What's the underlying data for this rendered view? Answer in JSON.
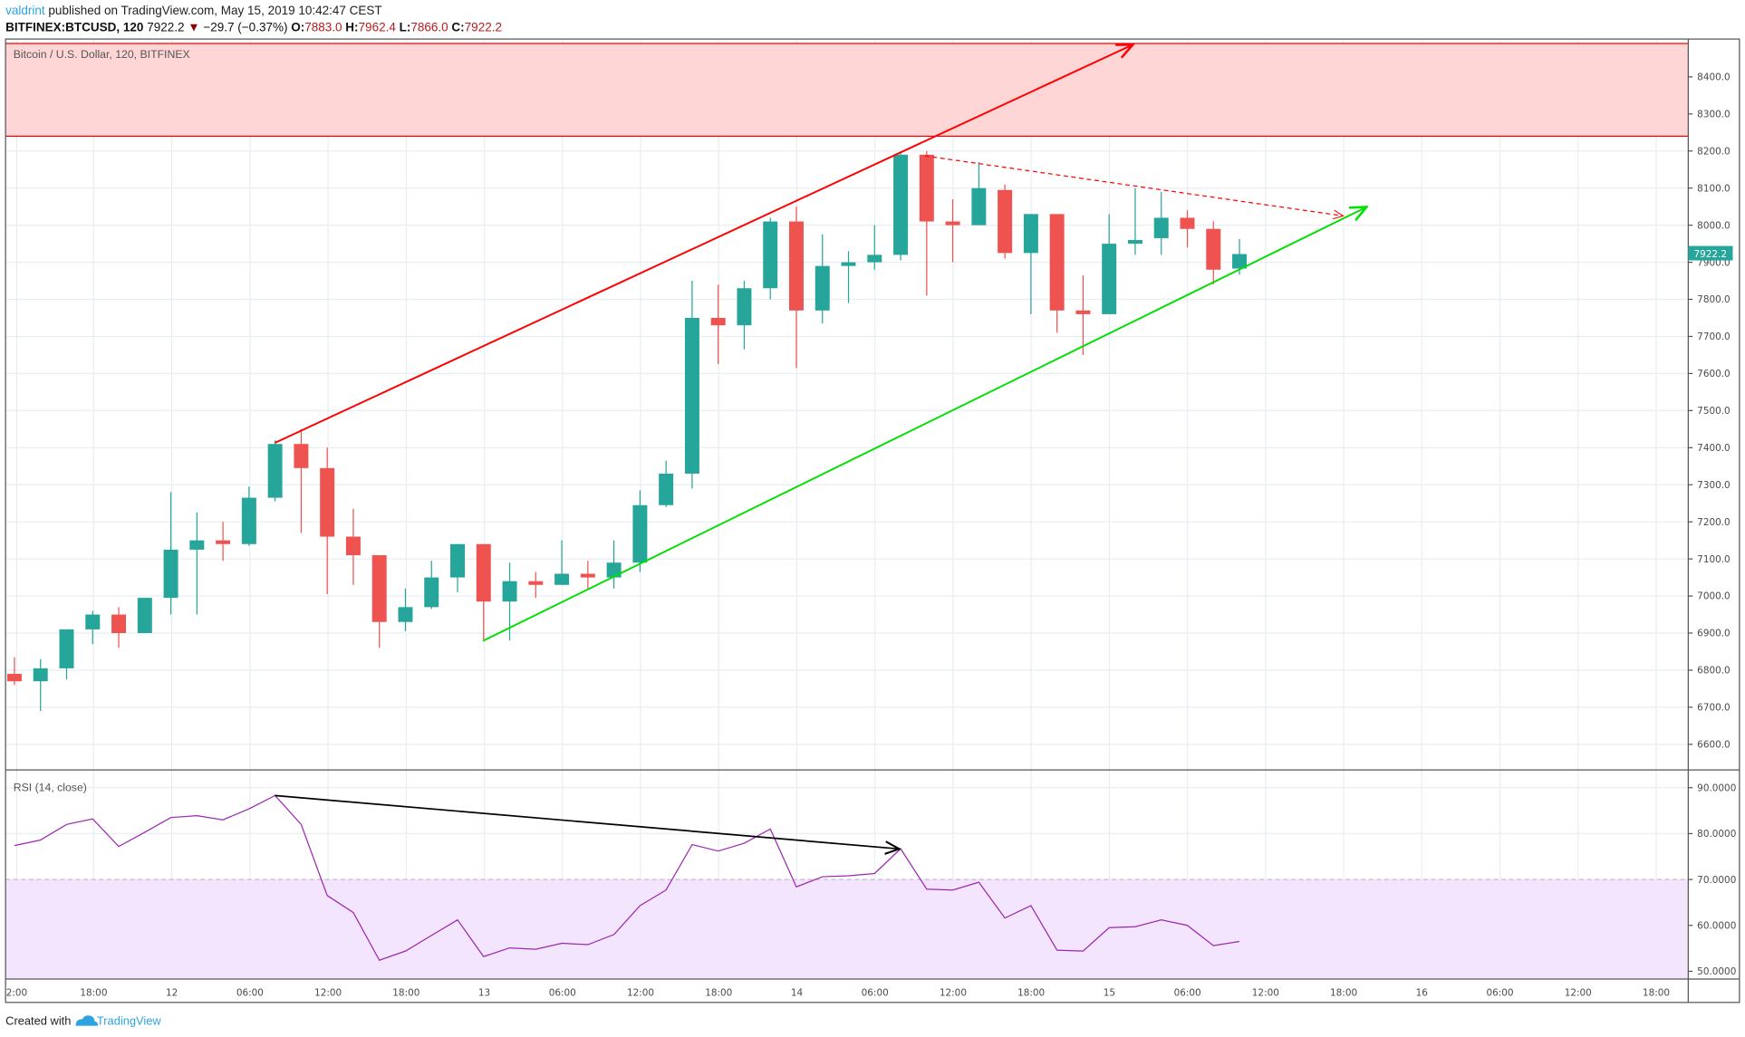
{
  "header": {
    "author": "valdrint",
    "published": " published on TradingView.com, May 15, 2019 10:42:47 CEST",
    "symbol": "BITFINEX:BTCUSD, 120",
    "last": "7922.2",
    "change": "−29.7 (−0.37%)",
    "o_label": "O:",
    "o": "7883.0",
    "h_label": "H:",
    "h": "7962.4",
    "l_label": "L:",
    "l": "7866.0",
    "c_label": "C:",
    "c": "7922.2",
    "down_arrow_icon": "triangle-down-icon"
  },
  "main_pane": {
    "legend": "Bitcoin / U.S. Dollar, 120, BITFINEX",
    "price_ticks": [
      "8400.0",
      "8300.0",
      "8200.0",
      "8100.0",
      "8000.0",
      "7900.0",
      "7800.0",
      "7700.0",
      "7600.0",
      "7500.0",
      "7400.0",
      "7300.0",
      "7200.0",
      "7100.0",
      "7000.0",
      "6900.0",
      "6800.0",
      "6700.0",
      "6600.0"
    ],
    "last_price_label": "7922.2"
  },
  "rsi_pane": {
    "legend": "RSI (14, close)",
    "ticks": [
      "90.0000",
      "80.0000",
      "70.0000",
      "60.0000",
      "50.0000"
    ]
  },
  "time_ticks": [
    "2:00",
    "18:00",
    "12",
    "06:00",
    "12:00",
    "18:00",
    "13",
    "06:00",
    "12:00",
    "18:00",
    "14",
    "06:00",
    "12:00",
    "18:00",
    "15",
    "06:00",
    "12:00",
    "18:00",
    "16",
    "06:00",
    "12:00",
    "18:00"
  ],
  "footer": {
    "created_with": "Created with",
    "brand": "TradingView"
  },
  "colors": {
    "up": "#26a69a",
    "down": "#ef5350",
    "rsi": "#9c27b0",
    "zone": "#ffd6d6",
    "rsi_band": "#f3e5fd",
    "accent": "#2ea3e0"
  },
  "chart_data": [
    {
      "type": "candlestick",
      "title": "Bitcoin / U.S. Dollar, 120, BITFINEX",
      "ylim": [
        6550,
        8500
      ],
      "resistance_zone": [
        8240,
        8490
      ],
      "candles": [
        [
          6790,
          6835,
          6760,
          6770
        ],
        [
          6770,
          6830,
          6690,
          6805
        ],
        [
          6805,
          6910,
          6775,
          6910
        ],
        [
          6910,
          6960,
          6870,
          6950
        ],
        [
          6950,
          6970,
          6860,
          6900
        ],
        [
          6900,
          6995,
          6900,
          6995
        ],
        [
          6995,
          7280,
          6950,
          7125
        ],
        [
          7125,
          7225,
          6950,
          7150
        ],
        [
          7150,
          7200,
          7095,
          7140
        ],
        [
          7140,
          7295,
          7135,
          7265
        ],
        [
          7265,
          7420,
          7255,
          7410
        ],
        [
          7410,
          7450,
          7170,
          7345
        ],
        [
          7345,
          7400,
          7005,
          7160
        ],
        [
          7160,
          7235,
          7030,
          7110
        ],
        [
          7110,
          7110,
          6860,
          6930
        ],
        [
          6930,
          7020,
          6905,
          6970
        ],
        [
          6970,
          7095,
          6965,
          7050
        ],
        [
          7050,
          7140,
          7010,
          7140
        ],
        [
          7140,
          7140,
          6880,
          6985
        ],
        [
          6985,
          7090,
          6880,
          7040
        ],
        [
          7040,
          7065,
          6995,
          7030
        ],
        [
          7030,
          7150,
          7030,
          7060
        ],
        [
          7060,
          7095,
          7020,
          7050
        ],
        [
          7050,
          7150,
          7020,
          7090
        ],
        [
          7090,
          7285,
          7065,
          7245
        ],
        [
          7245,
          7365,
          7240,
          7330
        ],
        [
          7330,
          7850,
          7290,
          7750
        ],
        [
          7750,
          7840,
          7625,
          7730
        ],
        [
          7730,
          7850,
          7665,
          7830
        ],
        [
          7830,
          8020,
          7800,
          8010
        ],
        [
          8010,
          8050,
          7615,
          7770
        ],
        [
          7770,
          7975,
          7735,
          7890
        ],
        [
          7890,
          7930,
          7790,
          7900
        ],
        [
          7900,
          8000,
          7880,
          7920
        ],
        [
          7920,
          8195,
          7905,
          8190
        ],
        [
          8190,
          8200,
          7810,
          8010
        ],
        [
          8010,
          8070,
          7900,
          8000
        ],
        [
          8000,
          8170,
          8000,
          8100
        ],
        [
          8095,
          8110,
          7910,
          7925
        ],
        [
          7925,
          8030,
          7760,
          8030
        ],
        [
          8030,
          8030,
          7710,
          7770
        ],
        [
          7770,
          7865,
          7650,
          7760
        ],
        [
          7760,
          8030,
          7760,
          7950
        ],
        [
          7950,
          8100,
          7920,
          7960
        ],
        [
          7965,
          8090,
          7920,
          8020
        ],
        [
          8020,
          8040,
          7940,
          7990
        ],
        [
          7990,
          8010,
          7840,
          7880
        ],
        [
          7883.0,
          7962.4,
          7866.0,
          7922.2
        ]
      ]
    },
    {
      "type": "line",
      "title": "RSI (14, close)",
      "ylim": [
        48,
        93
      ],
      "band": [
        50,
        70
      ],
      "values": [
        77.4,
        78.6,
        82.0,
        83.2,
        77.2,
        80.3,
        83.5,
        83.9,
        83.0,
        85.4,
        88.3,
        82.0,
        66.5,
        62.8,
        52.4,
        54.4,
        57.8,
        61.2,
        53.2,
        55.1,
        54.8,
        56.1,
        55.8,
        58.0,
        64.3,
        67.7,
        77.6,
        76.2,
        77.9,
        81.0,
        68.4,
        70.6,
        70.8,
        71.3,
        76.7,
        67.9,
        67.7,
        69.4,
        61.6,
        64.3,
        54.6,
        54.4,
        59.5,
        59.7,
        61.2,
        60.0,
        55.6,
        56.5
      ]
    }
  ]
}
